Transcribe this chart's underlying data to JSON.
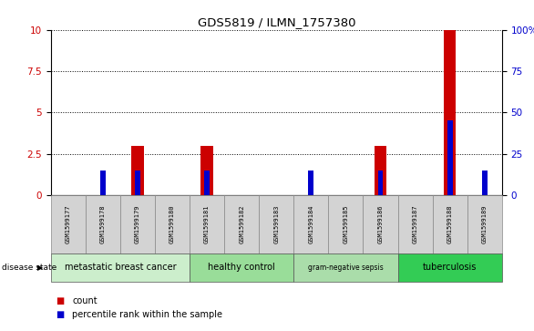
{
  "title": "GDS5819 / ILMN_1757380",
  "samples": [
    "GSM1599177",
    "GSM1599178",
    "GSM1599179",
    "GSM1599180",
    "GSM1599181",
    "GSM1599182",
    "GSM1599183",
    "GSM1599184",
    "GSM1599185",
    "GSM1599186",
    "GSM1599187",
    "GSM1599188",
    "GSM1599189"
  ],
  "count_values": [
    0,
    0,
    3.0,
    0,
    3.0,
    0,
    0,
    0,
    0,
    3.0,
    0,
    10.0,
    0
  ],
  "percentile_values": [
    0,
    15,
    15,
    0,
    15,
    0,
    0,
    15,
    0,
    15,
    0,
    45,
    15
  ],
  "count_color": "#cc0000",
  "percentile_color": "#0000cc",
  "ylim_left": [
    0,
    10
  ],
  "ylim_right": [
    0,
    100
  ],
  "yticks_left": [
    0,
    2.5,
    5.0,
    7.5,
    10
  ],
  "ytick_labels_left": [
    "0",
    "2.5",
    "5",
    "7.5",
    "10"
  ],
  "yticks_right": [
    0,
    25,
    50,
    75,
    100
  ],
  "ytick_labels_right": [
    "0",
    "25",
    "50",
    "75",
    "100%"
  ],
  "groups": [
    {
      "label": "metastatic breast cancer",
      "start": 0,
      "end": 4,
      "color": "#cceecc"
    },
    {
      "label": "healthy control",
      "start": 4,
      "end": 7,
      "color": "#99dd99"
    },
    {
      "label": "gram-negative sepsis",
      "start": 7,
      "end": 10,
      "color": "#aaddaa"
    },
    {
      "label": "tuberculosis",
      "start": 10,
      "end": 13,
      "color": "#33cc55"
    }
  ],
  "disease_state_label": "disease state",
  "legend_count": "count",
  "legend_percentile": "percentile rank within the sample",
  "bar_width": 0.35,
  "percentile_bar_width": 0.15,
  "tick_bg_color": "#d3d3d3",
  "plot_bg": "#ffffff"
}
